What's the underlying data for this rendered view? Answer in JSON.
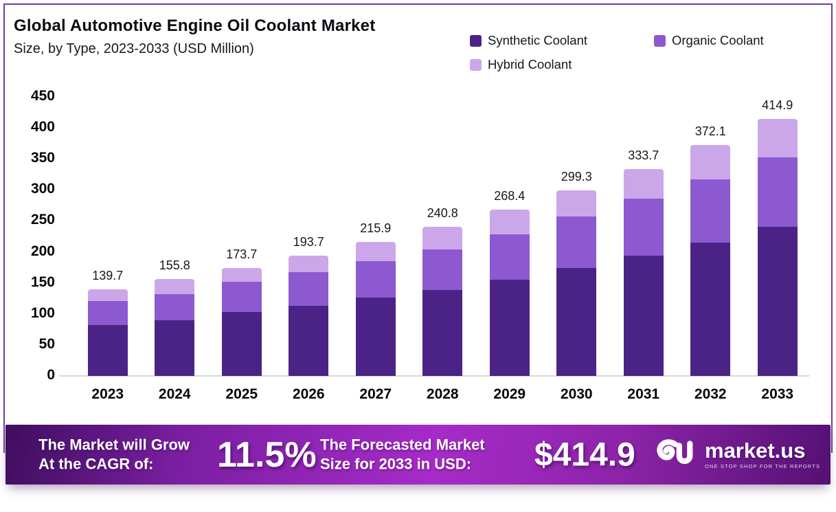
{
  "header": {
    "title": "Global Automotive Engine Oil Coolant Market",
    "subtitle": "Size, by Type, 2023-2033 (USD Million)"
  },
  "chart_data": {
    "type": "bar",
    "variant": "stacked",
    "title": "Global Automotive Engine Oil Coolant Market",
    "subtitle": "Size, by Type, 2023-2033 (USD Million)",
    "unit": "USD Million",
    "categories": [
      "2023",
      "2024",
      "2025",
      "2026",
      "2027",
      "2028",
      "2029",
      "2030",
      "2031",
      "2032",
      "2033"
    ],
    "totals": [
      139.7,
      155.8,
      173.7,
      193.7,
      215.9,
      240.8,
      268.4,
      299.3,
      333.7,
      372.1,
      414.9
    ],
    "series": [
      {
        "name": "Synthetic Coolant",
        "color": "#4b2387",
        "values": [
          82.5,
          89.8,
          102.7,
          113.5,
          126.0,
          138.9,
          155.0,
          174.0,
          194.0,
          215.3,
          240.0
        ]
      },
      {
        "name": "Organic Coolant",
        "color": "#8d59d0",
        "values": [
          38.5,
          42.0,
          49.0,
          53.5,
          59.6,
          65.6,
          73.0,
          83.3,
          92.0,
          102.2,
          113.0
        ]
      },
      {
        "name": "Hybrid Coolant",
        "color": "#cba7e9",
        "values": [
          18.7,
          24.0,
          22.0,
          26.7,
          30.3,
          36.3,
          40.4,
          42.0,
          47.7,
          54.6,
          61.9
        ]
      }
    ],
    "xlabel": "",
    "ylabel": "",
    "ylim": [
      0,
      450
    ],
    "y_ticks": [
      450,
      400,
      350,
      300,
      250,
      200,
      150,
      100,
      50,
      0
    ],
    "grid": false,
    "legend_position": "top-right",
    "value_labels": "total above each bar"
  },
  "banner": {
    "cagr_label_line1": "The Market will Grow",
    "cagr_label_line2": "At the CAGR of:",
    "cagr_value": "11.5%",
    "forecast_label_line1": "The Forecasted Market",
    "forecast_label_line2": "Size for 2033 in USD:",
    "forecast_value": "$414.9",
    "logo_text": "market.us",
    "logo_tagline": "ONE STOP SHOP FOR THE REPORTS"
  },
  "colors": {
    "frame_border": "#743a99",
    "baseline": "#d8d8d8",
    "banner_gradient": [
      "#3f0e5e",
      "#7b1fa2",
      "#a62bc8",
      "#8e24aa",
      "#541173"
    ],
    "text": "#16161e"
  }
}
